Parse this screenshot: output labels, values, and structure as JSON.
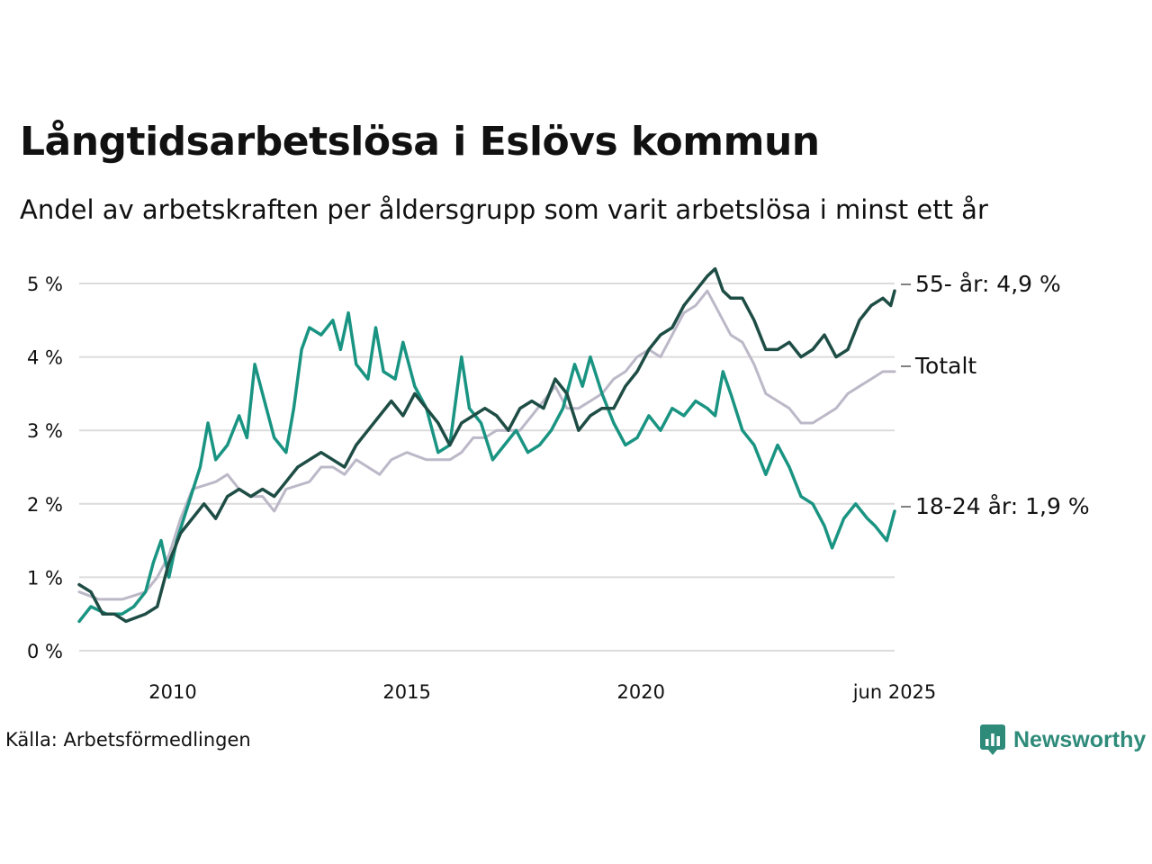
{
  "title": "Långtidsarbetslösa i Eslövs kommun",
  "subtitle": "Andel av arbetskraften per åldersgrupp som varit arbetslösa i minst ett år",
  "source": "Källa: Arbetsförmedlingen",
  "brand": "Newsworthy",
  "colors": {
    "s55": "#1e4d45",
    "total": "#bcb8c8",
    "s18": "#1a9482",
    "grid": "#dcdcdc",
    "brand": "#2e8b7a"
  },
  "chart_data": {
    "type": "line",
    "x_start": "2008-01",
    "x_end": "2025-06",
    "x_ticks": [
      {
        "date": "2010-01",
        "label": "2010"
      },
      {
        "date": "2015-01",
        "label": "2015"
      },
      {
        "date": "2020-01",
        "label": "2020"
      },
      {
        "date": "2025-06",
        "label": "jun 2025"
      }
    ],
    "y_ticks": [
      {
        "value": 0,
        "label": "0 %"
      },
      {
        "value": 1,
        "label": "1 %"
      },
      {
        "value": 2,
        "label": "2 %"
      },
      {
        "value": 3,
        "label": "3 %"
      },
      {
        "value": 4,
        "label": "4 %"
      },
      {
        "value": 5,
        "label": "5 %"
      }
    ],
    "ylim": [
      0,
      5.3
    ],
    "grid": true,
    "series": [
      {
        "key": "total",
        "label": "Totalt",
        "name": "Totalt",
        "points": [
          [
            "2008-01",
            0.8
          ],
          [
            "2008-06",
            0.7
          ],
          [
            "2008-12",
            0.7
          ],
          [
            "2009-06",
            0.8
          ],
          [
            "2009-09",
            1.0
          ],
          [
            "2009-12",
            1.3
          ],
          [
            "2010-03",
            1.8
          ],
          [
            "2010-06",
            2.2
          ],
          [
            "2010-12",
            2.3
          ],
          [
            "2011-03",
            2.4
          ],
          [
            "2011-06",
            2.2
          ],
          [
            "2011-09",
            2.1
          ],
          [
            "2011-12",
            2.1
          ],
          [
            "2012-03",
            1.9
          ],
          [
            "2012-06",
            2.2
          ],
          [
            "2012-12",
            2.3
          ],
          [
            "2013-03",
            2.5
          ],
          [
            "2013-06",
            2.5
          ],
          [
            "2013-09",
            2.4
          ],
          [
            "2013-12",
            2.6
          ],
          [
            "2014-03",
            2.5
          ],
          [
            "2014-06",
            2.4
          ],
          [
            "2014-09",
            2.6
          ],
          [
            "2015-01",
            2.7
          ],
          [
            "2015-06",
            2.6
          ],
          [
            "2015-12",
            2.6
          ],
          [
            "2016-03",
            2.7
          ],
          [
            "2016-06",
            2.9
          ],
          [
            "2016-09",
            2.9
          ],
          [
            "2016-12",
            3.0
          ],
          [
            "2017-06",
            3.0
          ],
          [
            "2017-09",
            3.2
          ],
          [
            "2017-12",
            3.4
          ],
          [
            "2018-03",
            3.6
          ],
          [
            "2018-06",
            3.3
          ],
          [
            "2018-09",
            3.3
          ],
          [
            "2018-12",
            3.4
          ],
          [
            "2019-03",
            3.5
          ],
          [
            "2019-06",
            3.7
          ],
          [
            "2019-09",
            3.8
          ],
          [
            "2019-12",
            4.0
          ],
          [
            "2020-03",
            4.1
          ],
          [
            "2020-06",
            4.0
          ],
          [
            "2020-09",
            4.3
          ],
          [
            "2020-12",
            4.6
          ],
          [
            "2021-03",
            4.7
          ],
          [
            "2021-06",
            4.9
          ],
          [
            "2021-09",
            4.6
          ],
          [
            "2021-12",
            4.3
          ],
          [
            "2022-03",
            4.2
          ],
          [
            "2022-06",
            3.9
          ],
          [
            "2022-09",
            3.5
          ],
          [
            "2022-12",
            3.4
          ],
          [
            "2023-03",
            3.3
          ],
          [
            "2023-06",
            3.1
          ],
          [
            "2023-09",
            3.1
          ],
          [
            "2023-12",
            3.2
          ],
          [
            "2024-03",
            3.3
          ],
          [
            "2024-06",
            3.5
          ],
          [
            "2024-09",
            3.6
          ],
          [
            "2024-12",
            3.7
          ],
          [
            "2025-03",
            3.8
          ],
          [
            "2025-06",
            3.8
          ]
        ]
      },
      {
        "key": "s18",
        "label": "18-24 år: 1,9 %",
        "name": "18-24 år",
        "points": [
          [
            "2008-01",
            0.4
          ],
          [
            "2008-04",
            0.6
          ],
          [
            "2008-08",
            0.5
          ],
          [
            "2008-12",
            0.5
          ],
          [
            "2009-03",
            0.6
          ],
          [
            "2009-06",
            0.8
          ],
          [
            "2009-08",
            1.2
          ],
          [
            "2009-10",
            1.5
          ],
          [
            "2009-12",
            1.0
          ],
          [
            "2010-02",
            1.5
          ],
          [
            "2010-05",
            2.0
          ],
          [
            "2010-08",
            2.5
          ],
          [
            "2010-10",
            3.1
          ],
          [
            "2010-12",
            2.6
          ],
          [
            "2011-03",
            2.8
          ],
          [
            "2011-06",
            3.2
          ],
          [
            "2011-08",
            2.9
          ],
          [
            "2011-10",
            3.9
          ],
          [
            "2011-12",
            3.5
          ],
          [
            "2012-03",
            2.9
          ],
          [
            "2012-06",
            2.7
          ],
          [
            "2012-08",
            3.3
          ],
          [
            "2012-10",
            4.1
          ],
          [
            "2012-12",
            4.4
          ],
          [
            "2013-03",
            4.3
          ],
          [
            "2013-06",
            4.5
          ],
          [
            "2013-08",
            4.1
          ],
          [
            "2013-10",
            4.6
          ],
          [
            "2013-12",
            3.9
          ],
          [
            "2014-03",
            3.7
          ],
          [
            "2014-05",
            4.4
          ],
          [
            "2014-07",
            3.8
          ],
          [
            "2014-10",
            3.7
          ],
          [
            "2014-12",
            4.2
          ],
          [
            "2015-03",
            3.6
          ],
          [
            "2015-06",
            3.3
          ],
          [
            "2015-09",
            2.7
          ],
          [
            "2015-12",
            2.8
          ],
          [
            "2016-03",
            4.0
          ],
          [
            "2016-05",
            3.3
          ],
          [
            "2016-08",
            3.1
          ],
          [
            "2016-11",
            2.6
          ],
          [
            "2017-02",
            2.8
          ],
          [
            "2017-05",
            3.0
          ],
          [
            "2017-08",
            2.7
          ],
          [
            "2017-11",
            2.8
          ],
          [
            "2018-02",
            3.0
          ],
          [
            "2018-05",
            3.3
          ],
          [
            "2018-08",
            3.9
          ],
          [
            "2018-10",
            3.6
          ],
          [
            "2018-12",
            4.0
          ],
          [
            "2019-03",
            3.5
          ],
          [
            "2019-06",
            3.1
          ],
          [
            "2019-09",
            2.8
          ],
          [
            "2019-12",
            2.9
          ],
          [
            "2020-03",
            3.2
          ],
          [
            "2020-06",
            3.0
          ],
          [
            "2020-09",
            3.3
          ],
          [
            "2020-12",
            3.2
          ],
          [
            "2021-03",
            3.4
          ],
          [
            "2021-06",
            3.3
          ],
          [
            "2021-08",
            3.2
          ],
          [
            "2021-10",
            3.8
          ],
          [
            "2021-12",
            3.5
          ],
          [
            "2022-03",
            3.0
          ],
          [
            "2022-06",
            2.8
          ],
          [
            "2022-09",
            2.4
          ],
          [
            "2022-12",
            2.8
          ],
          [
            "2023-03",
            2.5
          ],
          [
            "2023-06",
            2.1
          ],
          [
            "2023-09",
            2.0
          ],
          [
            "2023-12",
            1.7
          ],
          [
            "2024-02",
            1.4
          ],
          [
            "2024-05",
            1.8
          ],
          [
            "2024-08",
            2.0
          ],
          [
            "2024-11",
            1.8
          ],
          [
            "2025-01",
            1.7
          ],
          [
            "2025-04",
            1.5
          ],
          [
            "2025-06",
            1.9
          ]
        ]
      },
      {
        "key": "s55",
        "label": "55- år: 4,9 %",
        "name": "55- år",
        "points": [
          [
            "2008-01",
            0.9
          ],
          [
            "2008-04",
            0.8
          ],
          [
            "2008-07",
            0.5
          ],
          [
            "2008-10",
            0.5
          ],
          [
            "2009-01",
            0.4
          ],
          [
            "2009-06",
            0.5
          ],
          [
            "2009-09",
            0.6
          ],
          [
            "2009-12",
            1.2
          ],
          [
            "2010-03",
            1.6
          ],
          [
            "2010-06",
            1.8
          ],
          [
            "2010-09",
            2.0
          ],
          [
            "2010-12",
            1.8
          ],
          [
            "2011-03",
            2.1
          ],
          [
            "2011-06",
            2.2
          ],
          [
            "2011-09",
            2.1
          ],
          [
            "2011-12",
            2.2
          ],
          [
            "2012-03",
            2.1
          ],
          [
            "2012-06",
            2.3
          ],
          [
            "2012-09",
            2.5
          ],
          [
            "2012-12",
            2.6
          ],
          [
            "2013-03",
            2.7
          ],
          [
            "2013-06",
            2.6
          ],
          [
            "2013-09",
            2.5
          ],
          [
            "2013-12",
            2.8
          ],
          [
            "2014-03",
            3.0
          ],
          [
            "2014-06",
            3.2
          ],
          [
            "2014-09",
            3.4
          ],
          [
            "2014-12",
            3.2
          ],
          [
            "2015-03",
            3.5
          ],
          [
            "2015-06",
            3.3
          ],
          [
            "2015-09",
            3.1
          ],
          [
            "2015-12",
            2.8
          ],
          [
            "2016-03",
            3.1
          ],
          [
            "2016-06",
            3.2
          ],
          [
            "2016-09",
            3.3
          ],
          [
            "2016-12",
            3.2
          ],
          [
            "2017-03",
            3.0
          ],
          [
            "2017-06",
            3.3
          ],
          [
            "2017-09",
            3.4
          ],
          [
            "2017-12",
            3.3
          ],
          [
            "2018-03",
            3.7
          ],
          [
            "2018-06",
            3.5
          ],
          [
            "2018-09",
            3.0
          ],
          [
            "2018-12",
            3.2
          ],
          [
            "2019-03",
            3.3
          ],
          [
            "2019-06",
            3.3
          ],
          [
            "2019-09",
            3.6
          ],
          [
            "2019-12",
            3.8
          ],
          [
            "2020-03",
            4.1
          ],
          [
            "2020-06",
            4.3
          ],
          [
            "2020-09",
            4.4
          ],
          [
            "2020-12",
            4.7
          ],
          [
            "2021-03",
            4.9
          ],
          [
            "2021-06",
            5.1
          ],
          [
            "2021-08",
            5.2
          ],
          [
            "2021-10",
            4.9
          ],
          [
            "2021-12",
            4.8
          ],
          [
            "2022-03",
            4.8
          ],
          [
            "2022-06",
            4.5
          ],
          [
            "2022-09",
            4.1
          ],
          [
            "2022-12",
            4.1
          ],
          [
            "2023-03",
            4.2
          ],
          [
            "2023-06",
            4.0
          ],
          [
            "2023-09",
            4.1
          ],
          [
            "2023-12",
            4.3
          ],
          [
            "2024-03",
            4.0
          ],
          [
            "2024-06",
            4.1
          ],
          [
            "2024-09",
            4.5
          ],
          [
            "2024-12",
            4.7
          ],
          [
            "2025-03",
            4.8
          ],
          [
            "2025-05",
            4.7
          ],
          [
            "2025-06",
            4.9
          ]
        ]
      }
    ]
  }
}
